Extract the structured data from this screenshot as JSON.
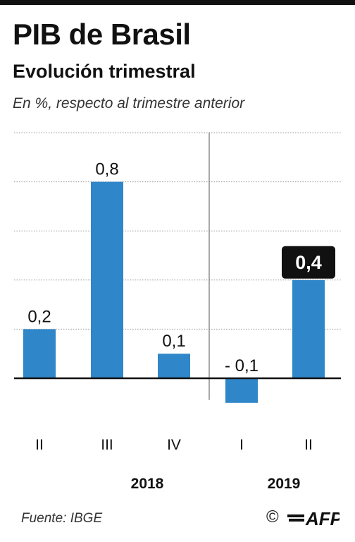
{
  "header": {
    "title": "PIB de Brasil",
    "subtitle": "Evolución trimestral",
    "note": "En %, respecto al trimestre anterior"
  },
  "chart_data": {
    "type": "bar",
    "categories": [
      "II",
      "III",
      "IV",
      "I",
      "II"
    ],
    "years": [
      {
        "label": "2018",
        "span": [
          0,
          2
        ]
      },
      {
        "label": "2019",
        "span": [
          3,
          4
        ]
      }
    ],
    "values": [
      0.2,
      0.8,
      0.1,
      -0.1,
      0.4
    ],
    "value_labels": [
      "0,2",
      "0,8",
      "0,1",
      "- 0,1",
      "0,4"
    ],
    "highlight_index": 4,
    "ylim": [
      -0.1,
      1.0
    ],
    "grid": true,
    "colors": {
      "bar": "#2f86c9",
      "highlight_bg": "#111111",
      "grid": "#9a9a9a",
      "axis": "#111111"
    }
  },
  "footer": {
    "source": "Fuente: IBGE",
    "copyright_symbol": "©",
    "brand": "AFP"
  }
}
